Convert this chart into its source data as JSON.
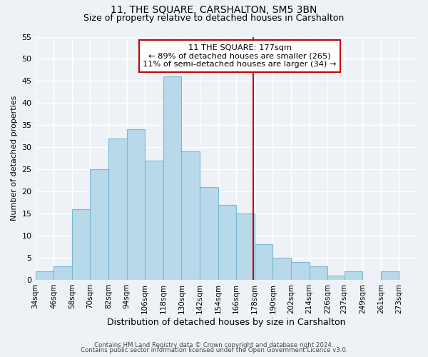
{
  "title": "11, THE SQUARE, CARSHALTON, SM5 3BN",
  "subtitle": "Size of property relative to detached houses in Carshalton",
  "xlabel": "Distribution of detached houses by size in Carshalton",
  "ylabel": "Number of detached properties",
  "bin_labels": [
    "34sqm",
    "46sqm",
    "58sqm",
    "70sqm",
    "82sqm",
    "94sqm",
    "106sqm",
    "118sqm",
    "130sqm",
    "142sqm",
    "154sqm",
    "166sqm",
    "178sqm",
    "190sqm",
    "202sqm",
    "214sqm",
    "226sqm",
    "237sqm",
    "249sqm",
    "261sqm",
    "273sqm"
  ],
  "bin_edges": [
    34,
    46,
    58,
    70,
    82,
    94,
    106,
    118,
    130,
    142,
    154,
    166,
    178,
    190,
    202,
    214,
    226,
    237,
    249,
    261,
    273,
    285
  ],
  "bar_heights": [
    2,
    3,
    16,
    25,
    32,
    34,
    27,
    46,
    29,
    21,
    17,
    15,
    8,
    5,
    4,
    3,
    1,
    2,
    0,
    2,
    0
  ],
  "bar_color": "#b8d9ea",
  "bar_edge_color": "#7ab8d4",
  "property_line_x": 177,
  "property_line_color": "#cc0000",
  "ylim": [
    0,
    55
  ],
  "yticks": [
    0,
    5,
    10,
    15,
    20,
    25,
    30,
    35,
    40,
    45,
    50,
    55
  ],
  "annotation_title": "11 THE SQUARE: 177sqm",
  "annotation_line1": "← 89% of detached houses are smaller (265)",
  "annotation_line2": "11% of semi-detached houses are larger (34) →",
  "annotation_box_color": "#ffffff",
  "annotation_box_edge": "#cc0000",
  "footer1": "Contains HM Land Registry data © Crown copyright and database right 2024.",
  "footer2": "Contains public sector information licensed under the Open Government Licence v3.0.",
  "background_color": "#eef2f7",
  "grid_color": "#ffffff",
  "title_fontsize": 10,
  "subtitle_fontsize": 9
}
